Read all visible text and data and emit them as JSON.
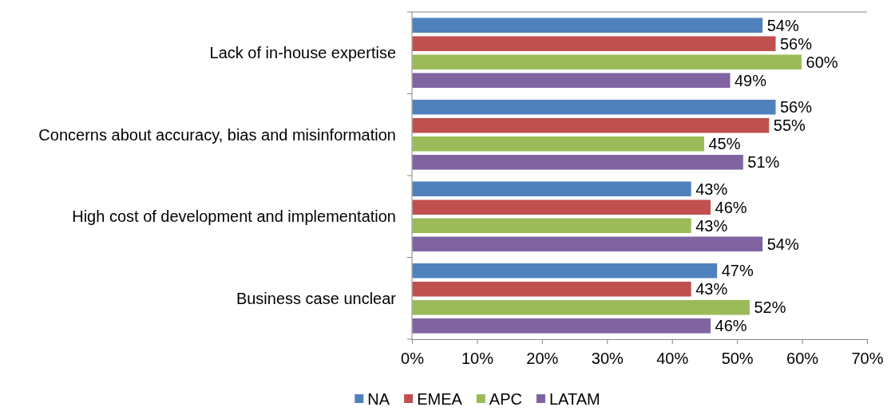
{
  "chart_data": {
    "type": "bar",
    "orientation": "horizontal",
    "categories": [
      "Lack of in-house expertise",
      "Concerns about accuracy, bias and misinformation",
      "High cost of development and implementation",
      "Business case unclear"
    ],
    "series": [
      {
        "name": "NA",
        "color": "#4f81bd",
        "values": [
          54,
          56,
          43,
          47
        ],
        "value_labels": [
          "54%",
          "56%",
          "43%",
          "47%"
        ]
      },
      {
        "name": "EMEA",
        "color": "#c0504d",
        "values": [
          56,
          55,
          46,
          43
        ],
        "value_labels": [
          "56%",
          "55%",
          "46%",
          "43%"
        ]
      },
      {
        "name": "APC",
        "color": "#9bbb59",
        "values": [
          60,
          45,
          43,
          52
        ],
        "value_labels": [
          "60%",
          "45%",
          "43%",
          "52%"
        ]
      },
      {
        "name": "LATAM",
        "color": "#8064a2",
        "values": [
          49,
          51,
          54,
          46
        ],
        "value_labels": [
          "49%",
          "51%",
          "54%",
          "46%"
        ]
      }
    ],
    "xlim": [
      0,
      70
    ],
    "xticks": [
      {
        "value": 0,
        "label": "0%"
      },
      {
        "value": 10,
        "label": "10%"
      },
      {
        "value": 20,
        "label": "20%"
      },
      {
        "value": 30,
        "label": "30%"
      },
      {
        "value": 40,
        "label": "40%"
      },
      {
        "value": 50,
        "label": "50%"
      },
      {
        "value": 60,
        "label": "60%"
      },
      {
        "value": 70,
        "label": "70%"
      }
    ],
    "legend": "bottom",
    "grid": false
  }
}
